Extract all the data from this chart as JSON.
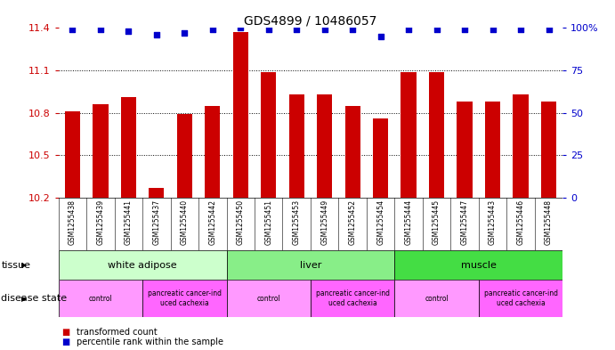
{
  "title": "GDS4899 / 10486057",
  "samples": [
    "GSM1255438",
    "GSM1255439",
    "GSM1255441",
    "GSM1255437",
    "GSM1255440",
    "GSM1255442",
    "GSM1255450",
    "GSM1255451",
    "GSM1255453",
    "GSM1255449",
    "GSM1255452",
    "GSM1255454",
    "GSM1255444",
    "GSM1255445",
    "GSM1255447",
    "GSM1255443",
    "GSM1255446",
    "GSM1255448"
  ],
  "bar_values": [
    10.81,
    10.86,
    10.91,
    10.27,
    10.79,
    10.85,
    11.37,
    11.09,
    10.93,
    10.93,
    10.85,
    10.76,
    11.09,
    11.09,
    10.88,
    10.88,
    10.93,
    10.88
  ],
  "percentile_values": [
    99,
    99,
    98,
    96,
    97,
    99,
    100,
    99,
    99,
    99,
    99,
    95,
    99,
    99,
    99,
    99,
    99,
    99
  ],
  "bar_color": "#cc0000",
  "dot_color": "#0000cc",
  "ylim_left": [
    10.2,
    11.4
  ],
  "ylim_right": [
    0,
    100
  ],
  "yticks_left": [
    10.2,
    10.5,
    10.8,
    11.1,
    11.4
  ],
  "yticks_right": [
    0,
    25,
    50,
    75,
    100
  ],
  "tissue_groups": [
    {
      "label": "white adipose",
      "start": 0,
      "end": 5,
      "color": "#ccffcc"
    },
    {
      "label": "liver",
      "start": 6,
      "end": 11,
      "color": "#88ee88"
    },
    {
      "label": "muscle",
      "start": 12,
      "end": 17,
      "color": "#44dd44"
    }
  ],
  "disease_groups": [
    {
      "label": "control",
      "start": 0,
      "end": 2,
      "color": "#ff99ff"
    },
    {
      "label": "pancreatic cancer-ind\nuced cachexia",
      "start": 3,
      "end": 5,
      "color": "#ff66ff"
    },
    {
      "label": "control",
      "start": 6,
      "end": 8,
      "color": "#ff99ff"
    },
    {
      "label": "pancreatic cancer-ind\nuced cachexia",
      "start": 9,
      "end": 11,
      "color": "#ff66ff"
    },
    {
      "label": "control",
      "start": 12,
      "end": 14,
      "color": "#ff99ff"
    },
    {
      "label": "pancreatic cancer-ind\nuced cachexia",
      "start": 15,
      "end": 17,
      "color": "#ff66ff"
    }
  ],
  "tissue_label": "tissue",
  "disease_label": "disease state",
  "legend_red": "transformed count",
  "legend_blue": "percentile rank within the sample",
  "bar_width": 0.55,
  "background_color": "#ffffff",
  "tick_label_color_left": "#cc0000",
  "tick_label_color_right": "#0000cc",
  "ybase": 10.2,
  "title_fontsize": 10,
  "axis_fontsize": 8,
  "label_fontsize": 7,
  "sample_fontsize": 5.5
}
